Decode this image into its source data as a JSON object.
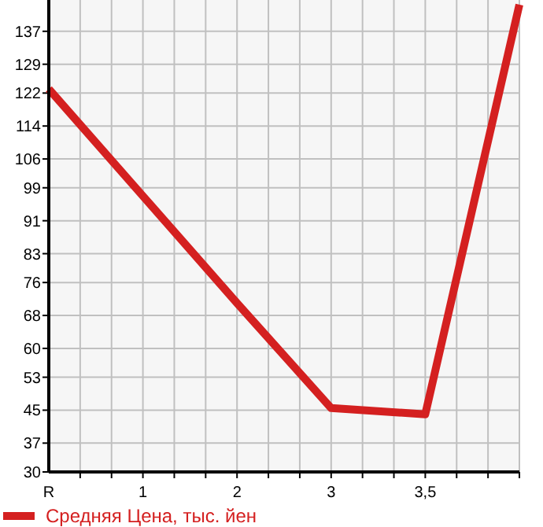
{
  "chart_data": {
    "type": "line",
    "categories": [
      "R",
      "1",
      "2",
      "3",
      "3,5",
      null
    ],
    "series": [
      {
        "name": "Средняя Цена, тыс. йен",
        "color": "#d42020",
        "values": [
          123,
          97,
          71,
          45.5,
          44,
          143.5
        ]
      }
    ],
    "ylim": [
      30,
      144.6
    ],
    "yticks": [
      30,
      37,
      45,
      53,
      60,
      68,
      76,
      83,
      91,
      99,
      106,
      114,
      122,
      129,
      137
    ],
    "grid": true,
    "legend": "bottom left",
    "marker": "none",
    "line_style": "solid"
  }
}
